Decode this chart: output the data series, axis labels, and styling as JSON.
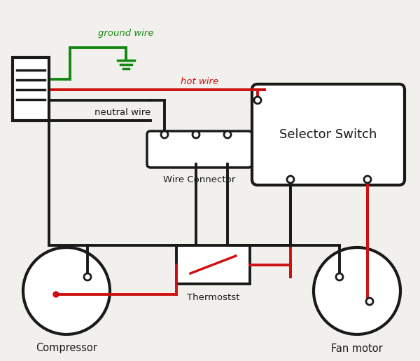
{
  "background_color": "#f2f0ec",
  "colors": {
    "black": "#1a1a1a",
    "red": "#cc1111",
    "green": "#118811",
    "white": "#ffffff"
  },
  "labels": {
    "ground_wire": "ground wire",
    "hot_wire": "hot wire",
    "neutral_wire": "neutral wire",
    "wire_connector": "Wire Connector",
    "selector_switch": "Selector Switch",
    "thermostat": "Thermostst",
    "compressor": "Compressor",
    "fan_motor": "Fan motor"
  }
}
